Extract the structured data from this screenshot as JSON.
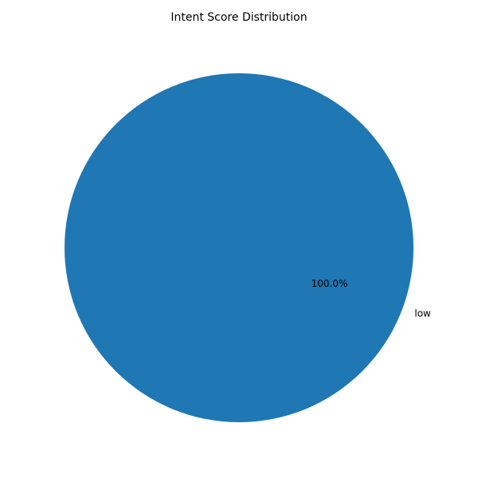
{
  "chart_data": {
    "type": "pie",
    "title": "Intent Score Distribution",
    "categories": [
      "low"
    ],
    "values": [
      100
    ],
    "percent_labels": [
      "100.0%"
    ],
    "colors": [
      "#1f77b4"
    ],
    "legend": "none"
  }
}
